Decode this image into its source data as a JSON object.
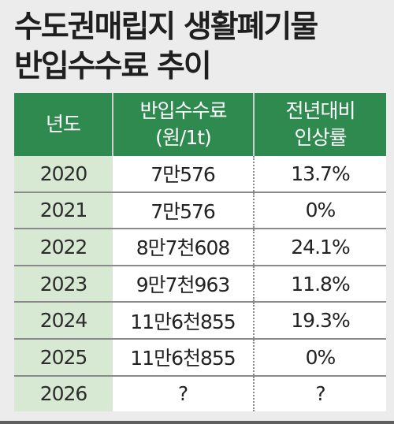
{
  "title": {
    "line1": "수도권매립지 생활폐기물",
    "line2": "반입수수료 추이"
  },
  "table": {
    "headers": {
      "year": "년도",
      "fee_line1": "반입수수료",
      "fee_line2": "(원/1t)",
      "rate_line1": "전년대비",
      "rate_line2": "인상률"
    },
    "rows": [
      {
        "year": "2020",
        "fee": "7만576",
        "rate": "13.7%"
      },
      {
        "year": "2021",
        "fee": "7만576",
        "rate": "0%"
      },
      {
        "year": "2022",
        "fee": "8만7천608",
        "rate": "24.1%"
      },
      {
        "year": "2023",
        "fee": "9만7천963",
        "rate": "11.8%"
      },
      {
        "year": "2024",
        "fee": "11만6천855",
        "rate": "19.3%"
      },
      {
        "year": "2025",
        "fee": "11만6천855",
        "rate": "0%"
      },
      {
        "year": "2026",
        "fee": "?",
        "rate": "?"
      }
    ]
  },
  "colors": {
    "header_bg": "#2f8a50",
    "year_cell_bg": "#d7e8d3",
    "page_bg": "#ececec"
  }
}
